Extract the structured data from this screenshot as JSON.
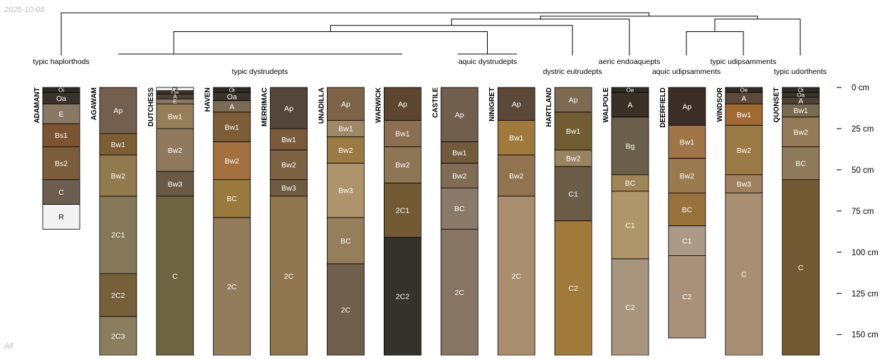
{
  "date_label": "2025-10-08",
  "footer_label": "All",
  "depth_unit": "cm",
  "depth_ticks": [
    0,
    25,
    50,
    75,
    100,
    125,
    150
  ],
  "profiles": [
    {
      "name": "ADAMANT",
      "taxon": "typic haplorthods",
      "horizons": [
        {
          "name": "Oi",
          "top": 0,
          "bottom": 3,
          "color": "#2f2b26"
        },
        {
          "name": "Oa",
          "top": 3,
          "bottom": 10,
          "color": "#3a332c"
        },
        {
          "name": "E",
          "top": 10,
          "bottom": 22,
          "color": "#8a7866"
        },
        {
          "name": "Bs1",
          "top": 22,
          "bottom": 36,
          "color": "#7b5432"
        },
        {
          "name": "Bs2",
          "top": 36,
          "bottom": 56,
          "color": "#7b5d3b"
        },
        {
          "name": "C",
          "top": 56,
          "bottom": 71,
          "color": "#6b5e4e"
        },
        {
          "name": "R",
          "top": 71,
          "bottom": 86,
          "color": "#f3f3f3"
        }
      ]
    },
    {
      "name": "AGAWAM",
      "taxon": "typic dystrudepts",
      "horizons": [
        {
          "name": "Ap",
          "top": 0,
          "bottom": 28,
          "color": "#735f4d"
        },
        {
          "name": "Bw1",
          "top": 28,
          "bottom": 41,
          "color": "#7c5d34"
        },
        {
          "name": "Bw2",
          "top": 41,
          "bottom": 66,
          "color": "#927a4f"
        },
        {
          "name": "2C1",
          "top": 66,
          "bottom": 113,
          "color": "#857858"
        },
        {
          "name": "2C2",
          "top": 113,
          "bottom": 139,
          "color": "#76603a"
        },
        {
          "name": "2C3",
          "top": 139,
          "bottom": 165,
          "color": "#8a7e5f"
        }
      ]
    },
    {
      "name": "DUTCHESS",
      "taxon": "",
      "horizons": [
        {
          "name": "Oi",
          "top": 0,
          "bottom": 2,
          "color": "#f3f3f3"
        },
        {
          "name": "Oa",
          "top": 2,
          "bottom": 4,
          "color": "#3a332c"
        },
        {
          "name": "A",
          "top": 4,
          "bottom": 7,
          "color": "#4e4236"
        },
        {
          "name": "E",
          "top": 7,
          "bottom": 10,
          "color": "#8a7866"
        },
        {
          "name": "Bw1",
          "top": 10,
          "bottom": 25,
          "color": "#957e58"
        },
        {
          "name": "Bw2",
          "top": 25,
          "bottom": 51,
          "color": "#8f7a5f"
        },
        {
          "name": "Bw3",
          "top": 51,
          "bottom": 66,
          "color": "#6a5a45"
        },
        {
          "name": "C",
          "top": 66,
          "bottom": 165,
          "color": "#6e6442"
        }
      ]
    },
    {
      "name": "HAVEN",
      "taxon": "",
      "horizons": [
        {
          "name": "Oi",
          "top": 0,
          "bottom": 3,
          "color": "#2f2b26"
        },
        {
          "name": "Oa",
          "top": 3,
          "bottom": 8,
          "color": "#3a332c"
        },
        {
          "name": "A",
          "top": 8,
          "bottom": 15,
          "color": "#7b6a55"
        },
        {
          "name": "Bw1",
          "top": 15,
          "bottom": 33,
          "color": "#7c5d38"
        },
        {
          "name": "Bw2",
          "top": 33,
          "bottom": 56,
          "color": "#a2713f"
        },
        {
          "name": "BC",
          "top": 56,
          "bottom": 79,
          "color": "#98793e"
        },
        {
          "name": "2C",
          "top": 79,
          "bottom": 165,
          "color": "#927c5b"
        }
      ]
    },
    {
      "name": "MERRIMAC",
      "taxon": "",
      "horizons": [
        {
          "name": "Ap",
          "top": 0,
          "bottom": 25,
          "color": "#54463a"
        },
        {
          "name": "Bw1",
          "top": 25,
          "bottom": 38,
          "color": "#7a5a3a"
        },
        {
          "name": "Bw2",
          "top": 38,
          "bottom": 56,
          "color": "#7c6143"
        },
        {
          "name": "Bw3",
          "top": 56,
          "bottom": 66,
          "color": "#6f5a42"
        },
        {
          "name": "2C",
          "top": 66,
          "bottom": 165,
          "color": "#8f764f"
        }
      ]
    },
    {
      "name": "UNADILLA",
      "taxon": "",
      "horizons": [
        {
          "name": "Ap",
          "top": 0,
          "bottom": 20,
          "color": "#7d6448"
        },
        {
          "name": "Bw1",
          "top": 20,
          "bottom": 30,
          "color": "#9e8866"
        },
        {
          "name": "Bw2",
          "top": 30,
          "bottom": 46,
          "color": "#9a7a45"
        },
        {
          "name": "Bw3",
          "top": 46,
          "bottom": 79,
          "color": "#ae946c"
        },
        {
          "name": "BC",
          "top": 79,
          "bottom": 107,
          "color": "#957e5c"
        },
        {
          "name": "2C",
          "top": 107,
          "bottom": 165,
          "color": "#6f5f4c"
        }
      ]
    },
    {
      "name": "WARWICK",
      "taxon": "",
      "horizons": [
        {
          "name": "Ap",
          "top": 0,
          "bottom": 20,
          "color": "#5c4632"
        },
        {
          "name": "Bw1",
          "top": 20,
          "bottom": 36,
          "color": "#8a6f52"
        },
        {
          "name": "Bw2",
          "top": 36,
          "bottom": 58,
          "color": "#8d7655"
        },
        {
          "name": "2C1",
          "top": 58,
          "bottom": 91,
          "color": "#725a34"
        },
        {
          "name": "2C2",
          "top": 91,
          "bottom": 165,
          "color": "#35312c"
        }
      ]
    },
    {
      "name": "CASTILE",
      "taxon": "aquic dystrudepts",
      "horizons": [
        {
          "name": "Ap",
          "top": 0,
          "bottom": 33,
          "color": "#705e4e"
        },
        {
          "name": "Bw1",
          "top": 33,
          "bottom": 46,
          "color": "#725a3c"
        },
        {
          "name": "Bw2",
          "top": 46,
          "bottom": 61,
          "color": "#806b55"
        },
        {
          "name": "BC",
          "top": 61,
          "bottom": 86,
          "color": "#8a7a6a"
        },
        {
          "name": "2C",
          "top": 86,
          "bottom": 165,
          "color": "#857562"
        }
      ]
    },
    {
      "name": "NINIGRET",
      "taxon": "",
      "horizons": [
        {
          "name": "Ap",
          "top": 0,
          "bottom": 20,
          "color": "#5c4838"
        },
        {
          "name": "Bw1",
          "top": 20,
          "bottom": 41,
          "color": "#a07a3c"
        },
        {
          "name": "Bw2",
          "top": 41,
          "bottom": 66,
          "color": "#917352"
        },
        {
          "name": "2C",
          "top": 66,
          "bottom": 165,
          "color": "#a88d6e"
        }
      ]
    },
    {
      "name": "HARTLAND",
      "taxon": "dystric eutrudepts",
      "horizons": [
        {
          "name": "Ap",
          "top": 0,
          "bottom": 15,
          "color": "#7c6a52"
        },
        {
          "name": "Bw1",
          "top": 15,
          "bottom": 38,
          "color": "#725c32"
        },
        {
          "name": "Bw2",
          "top": 38,
          "bottom": 48,
          "color": "#9a835f"
        },
        {
          "name": "C1",
          "top": 48,
          "bottom": 81,
          "color": "#6b5d48"
        },
        {
          "name": "C2",
          "top": 81,
          "bottom": 165,
          "color": "#a07a3a"
        }
      ]
    },
    {
      "name": "WALPOLE",
      "taxon": "aeric endoaquepts",
      "horizons": [
        {
          "name": "Oe",
          "top": 0,
          "bottom": 3,
          "color": "#2f2b26"
        },
        {
          "name": "A",
          "top": 3,
          "bottom": 18,
          "color": "#3a3026"
        },
        {
          "name": "Bg",
          "top": 18,
          "bottom": 53,
          "color": "#6b5e4a"
        },
        {
          "name": "BC",
          "top": 53,
          "bottom": 63,
          "color": "#a08558"
        },
        {
          "name": "C1",
          "top": 63,
          "bottom": 104,
          "color": "#ae966a"
        },
        {
          "name": "C2",
          "top": 104,
          "bottom": 165,
          "color": "#a8957e"
        }
      ]
    },
    {
      "name": "DEERFIELD",
      "taxon": "aquic udipsamments",
      "horizons": [
        {
          "name": "Ap",
          "top": 0,
          "bottom": 23,
          "color": "#3a2e26"
        },
        {
          "name": "Bw1",
          "top": 23,
          "bottom": 43,
          "color": "#a07548"
        },
        {
          "name": "Bw2",
          "top": 43,
          "bottom": 64,
          "color": "#9a7a4e"
        },
        {
          "name": "BC",
          "top": 64,
          "bottom": 84,
          "color": "#98713d"
        },
        {
          "name": "C1",
          "top": 84,
          "bottom": 102,
          "color": "#ac9a88"
        },
        {
          "name": "C2",
          "top": 102,
          "bottom": 152,
          "color": "#a8907a"
        }
      ]
    },
    {
      "name": "WINDSOR",
      "taxon": "typic udipsamments",
      "horizons": [
        {
          "name": "Oe",
          "top": 0,
          "bottom": 3,
          "color": "#2f2b26"
        },
        {
          "name": "A",
          "top": 3,
          "bottom": 10,
          "color": "#5c4a3a"
        },
        {
          "name": "Bw1",
          "top": 10,
          "bottom": 23,
          "color": "#a06a32"
        },
        {
          "name": "Bw2",
          "top": 23,
          "bottom": 53,
          "color": "#9a7a45"
        },
        {
          "name": "Bw3",
          "top": 53,
          "bottom": 64,
          "color": "#9f8060"
        },
        {
          "name": "C",
          "top": 64,
          "bottom": 165,
          "color": "#a88e72"
        }
      ]
    },
    {
      "name": "QUONSET",
      "taxon": "typic udorthents",
      "horizons": [
        {
          "name": "Oi",
          "top": 0,
          "bottom": 3,
          "color": "#2f2b26"
        },
        {
          "name": "Oa",
          "top": 3,
          "bottom": 6,
          "color": "#3a332c"
        },
        {
          "name": "A",
          "top": 6,
          "bottom": 10,
          "color": "#4e4236"
        },
        {
          "name": "Bw1",
          "top": 10,
          "bottom": 18,
          "color": "#7a6a52"
        },
        {
          "name": "Bw2",
          "top": 18,
          "bottom": 36,
          "color": "#957a58"
        },
        {
          "name": "BC",
          "top": 36,
          "bottom": 56,
          "color": "#8f7a5a"
        },
        {
          "name": "C",
          "top": 56,
          "bottom": 165,
          "color": "#725a34"
        }
      ]
    }
  ],
  "dendrogram": {
    "leaf_order": [
      "ADAMANT",
      "AGAWAM",
      "DUTCHESS",
      "HAVEN",
      "MERRIMAC",
      "UNADILLA",
      "WARWICK",
      "CASTILE",
      "NINIGRET",
      "HARTLAND",
      "WALPOLE",
      "DEERFIELD",
      "WINDSOR",
      "QUONSET"
    ],
    "nodes": [
      {
        "id": "n_dystrudepts",
        "children": [
          "typic dystrudepts",
          "aquic dystrudepts"
        ],
        "height": 0.55
      },
      {
        "id": "n_eutrudepts",
        "children": [
          "n_dystrudepts",
          "dystric eutrudepts"
        ],
        "height": 0.7
      },
      {
        "id": "n_aquepts",
        "children": [
          "n_eutrudepts",
          "aeric endoaquepts"
        ],
        "height": 0.85
      },
      {
        "id": "n_udipsamments",
        "children": [
          "aquic udipsamments",
          "typic udipsamments"
        ],
        "height": 0.55
      },
      {
        "id": "n_entisols",
        "children": [
          "n_udipsamments",
          "typic udorthents"
        ],
        "height": 0.85
      },
      {
        "id": "n_mid",
        "children": [
          "n_aquepts",
          "n_entisols"
        ],
        "height": 0.92
      },
      {
        "id": "n_root",
        "children": [
          "typic haplorthods",
          "n_mid"
        ],
        "height": 1.0
      }
    ]
  },
  "group_labels": [
    "typic haplorthods",
    "typic dystrudepts",
    "aquic dystrudepts",
    "dystric eutrudepts",
    "aeric endoaquepts",
    "aquic udipsamments",
    "typic udipsamments",
    "typic udorthents"
  ]
}
